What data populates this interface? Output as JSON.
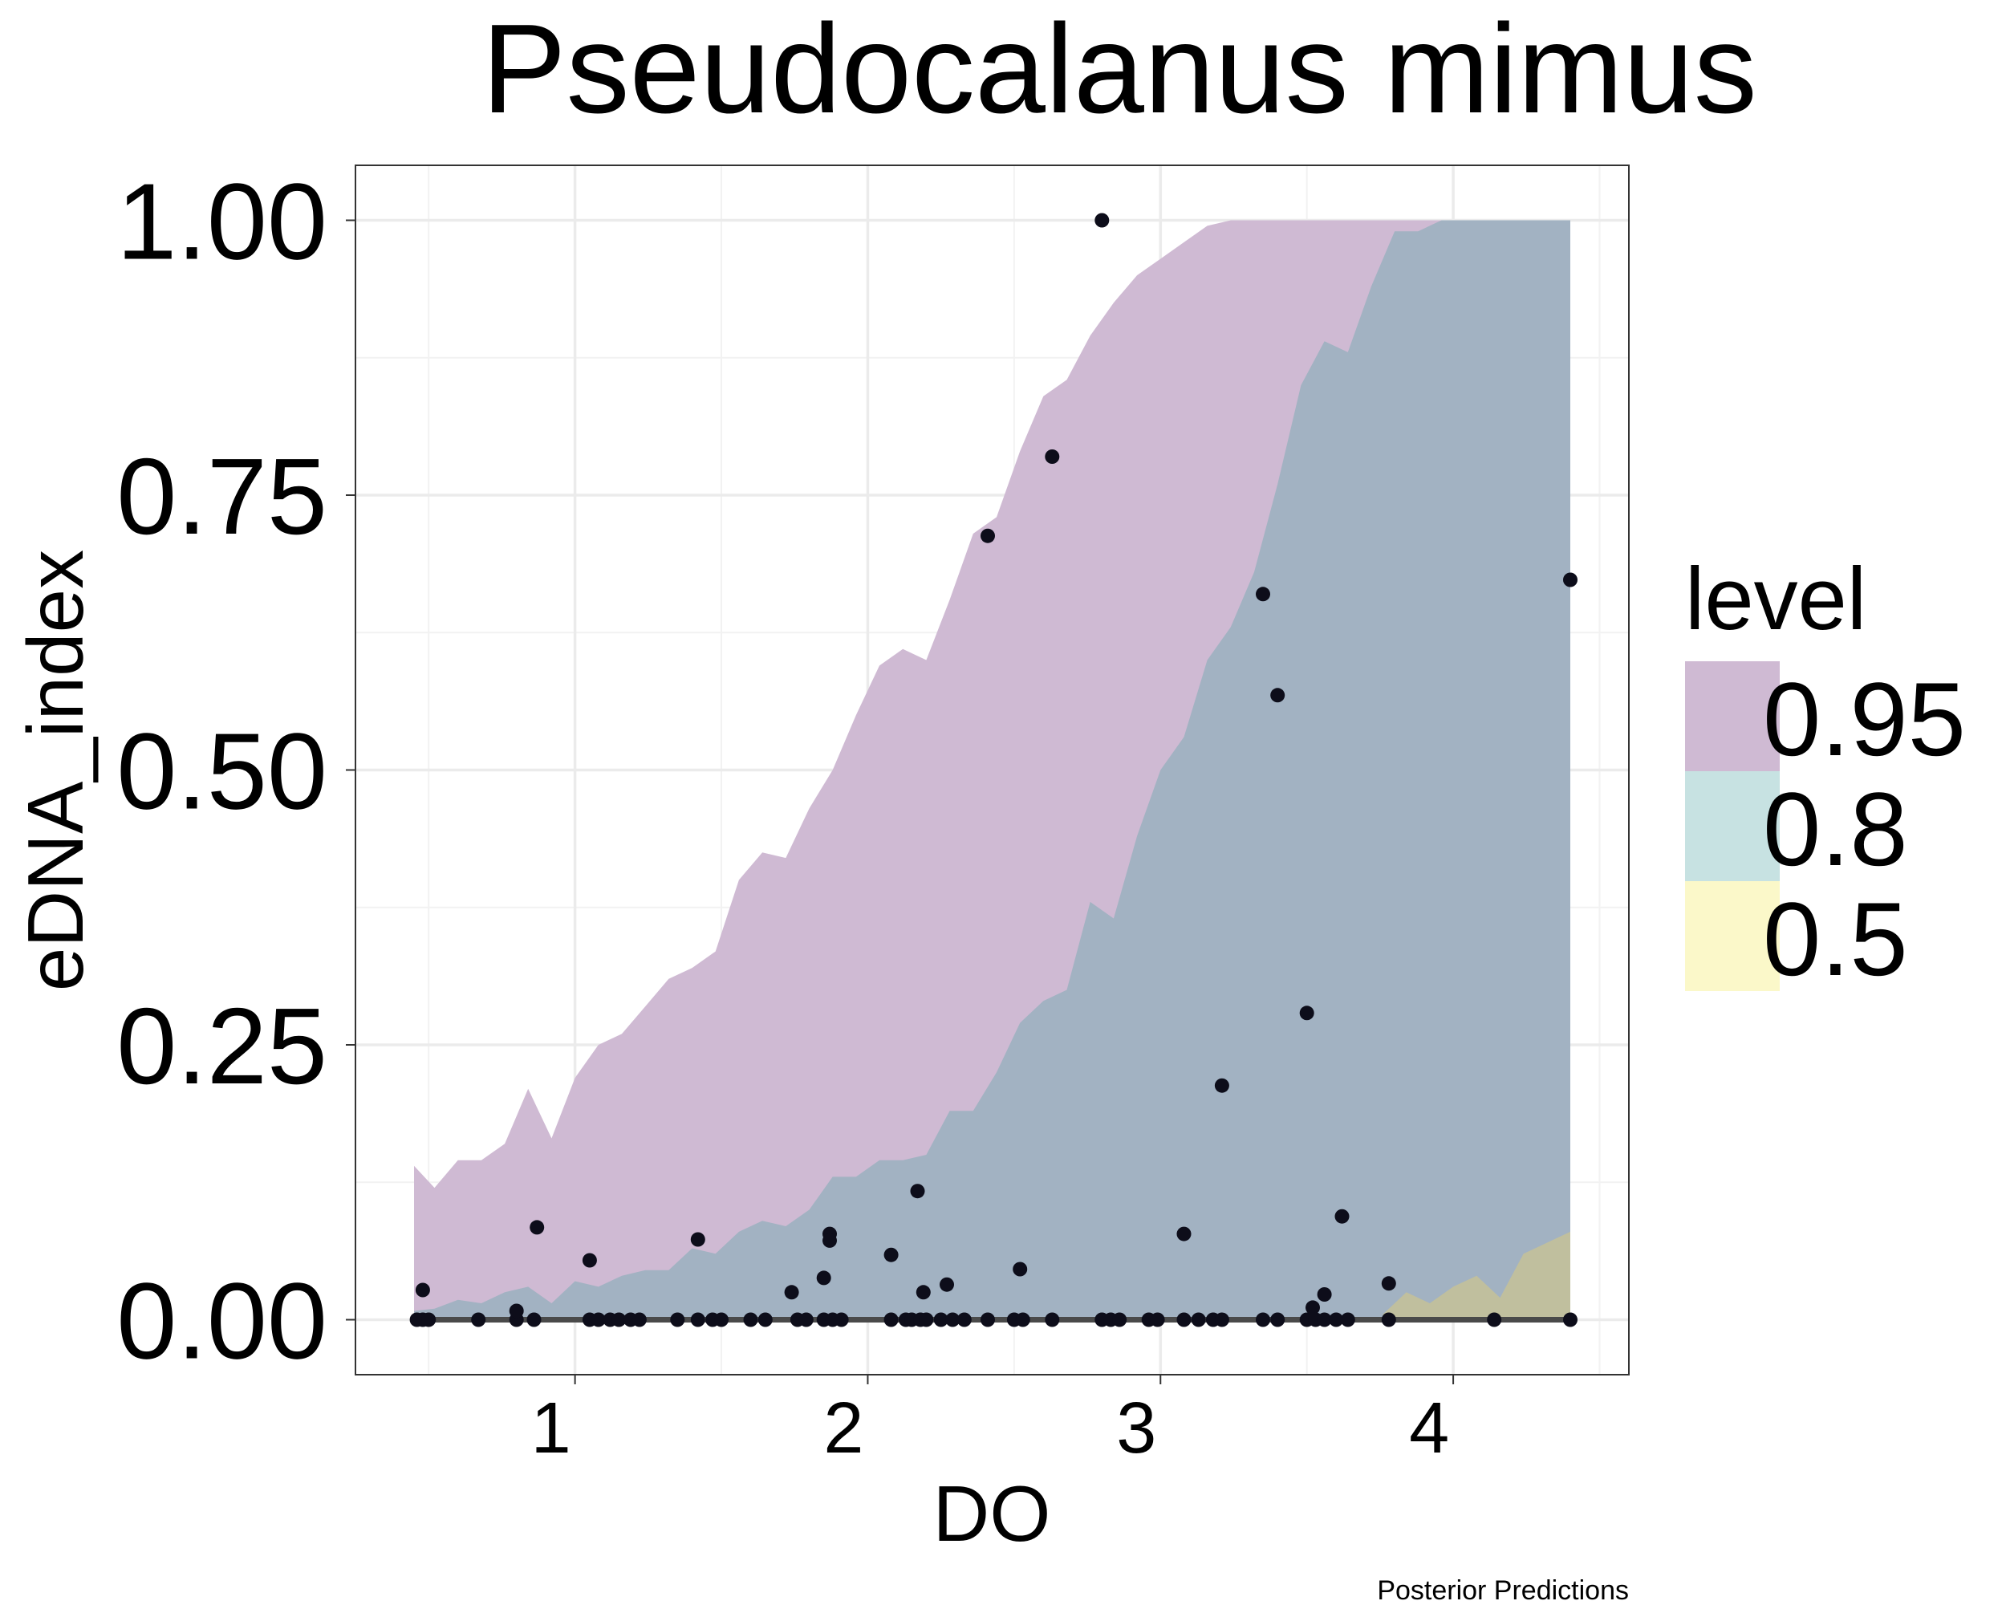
{
  "chart_data": {
    "type": "scatter",
    "title": "Pseudocalanus mimus",
    "xlabel": "DO",
    "ylabel": "eDNA_index",
    "caption": "Posterior Predictions",
    "xlim": [
      0.25,
      4.6
    ],
    "ylim": [
      -0.05,
      1.05
    ],
    "xticks": [
      1,
      2,
      3,
      4
    ],
    "xtick_labels": [
      "1",
      "2",
      "3",
      "4"
    ],
    "yticks": [
      0,
      0.25,
      0.5,
      0.75,
      1.0
    ],
    "ytick_labels": [
      "0.00",
      "0.25",
      "0.50",
      "0.75",
      "1.00"
    ],
    "grid": true,
    "legend": {
      "title": "level",
      "position": "right",
      "entries": [
        {
          "label": "0.95",
          "color": "#cfbad3"
        },
        {
          "label": "0.8",
          "color": "#c7e2e2"
        },
        {
          "label": "0.5",
          "color": "#fbf8c9"
        }
      ]
    },
    "colors": {
      "band_95": "#cfbad3",
      "band_80": "#a2b2c2",
      "band_50": "#c0bf9e",
      "median_line": "#4a4a4a",
      "points": "#0d0d1a"
    },
    "bands": {
      "x": [
        0.45,
        0.52,
        0.6,
        0.68,
        0.76,
        0.84,
        0.92,
        1.0,
        1.08,
        1.16,
        1.24,
        1.32,
        1.4,
        1.48,
        1.56,
        1.64,
        1.72,
        1.8,
        1.88,
        1.96,
        2.04,
        2.12,
        2.2,
        2.28,
        2.36,
        2.44,
        2.52,
        2.6,
        2.68,
        2.76,
        2.84,
        2.92,
        3.0,
        3.08,
        3.16,
        3.24,
        3.32,
        3.4,
        3.48,
        3.56,
        3.64,
        3.72,
        3.8,
        3.88,
        3.96,
        4.04,
        4.12,
        4.2,
        4.28,
        4.36,
        4.4
      ],
      "band_95": {
        "lower": [
          0,
          0,
          0,
          0,
          0,
          0,
          0,
          0,
          0,
          0,
          0,
          0,
          0,
          0,
          0,
          0,
          0,
          0,
          0,
          0,
          0,
          0,
          0,
          0,
          0,
          0,
          0,
          0,
          0,
          0,
          0,
          0,
          0,
          0,
          0,
          0,
          0,
          0,
          0,
          0,
          0,
          0,
          0,
          0,
          0,
          0,
          0,
          0,
          0,
          0,
          0
        ],
        "upper": [
          0.14,
          0.12,
          0.145,
          0.145,
          0.16,
          0.21,
          0.165,
          0.22,
          0.25,
          0.26,
          0.285,
          0.31,
          0.32,
          0.335,
          0.4,
          0.425,
          0.42,
          0.465,
          0.5,
          0.55,
          0.595,
          0.61,
          0.6,
          0.655,
          0.715,
          0.73,
          0.79,
          0.84,
          0.855,
          0.895,
          0.925,
          0.95,
          0.965,
          0.98,
          0.995,
          1.0,
          1.0,
          1.0,
          1.0,
          1.0,
          1.0,
          1.0,
          1.0,
          1.0,
          1.0,
          1.0,
          1.0,
          1.0,
          1.0,
          1.0,
          1.0
        ]
      },
      "band_80": {
        "lower": [
          0,
          0,
          0,
          0,
          0,
          0,
          0,
          0,
          0,
          0,
          0,
          0,
          0,
          0,
          0,
          0,
          0,
          0,
          0,
          0,
          0,
          0,
          0,
          0,
          0,
          0,
          0,
          0,
          0,
          0,
          0,
          0,
          0,
          0,
          0,
          0,
          0,
          0,
          0,
          0,
          0,
          0,
          0,
          0,
          0,
          0,
          0,
          0,
          0,
          0,
          0
        ],
        "upper": [
          0.008,
          0.01,
          0.018,
          0.015,
          0.025,
          0.03,
          0.015,
          0.035,
          0.03,
          0.04,
          0.045,
          0.045,
          0.065,
          0.06,
          0.08,
          0.09,
          0.085,
          0.1,
          0.13,
          0.13,
          0.145,
          0.145,
          0.15,
          0.19,
          0.19,
          0.225,
          0.27,
          0.29,
          0.3,
          0.38,
          0.365,
          0.44,
          0.5,
          0.53,
          0.6,
          0.63,
          0.68,
          0.76,
          0.85,
          0.89,
          0.88,
          0.94,
          0.99,
          0.99,
          1.0,
          1.0,
          1.0,
          1.0,
          1.0,
          1.0,
          1.0
        ]
      },
      "band_50": {
        "x": [
          3.76,
          3.84,
          3.92,
          4.0,
          4.08,
          4.16,
          4.24,
          4.32,
          4.4
        ],
        "lower": [
          0,
          0,
          0,
          0,
          0,
          0,
          0,
          0,
          0
        ],
        "upper": [
          0.005,
          0.025,
          0.015,
          0.03,
          0.04,
          0.02,
          0.06,
          0.07,
          0.08
        ]
      },
      "median": {
        "x": [
          0.45,
          4.4
        ],
        "y": [
          0,
          0
        ]
      }
    },
    "points": [
      [
        0.48,
        0.027
      ],
      [
        0.46,
        0
      ],
      [
        0.48,
        0
      ],
      [
        0.5,
        0
      ],
      [
        0.67,
        0
      ],
      [
        0.8,
        0
      ],
      [
        0.8,
        0.008
      ],
      [
        0.86,
        0
      ],
      [
        0.87,
        0.084
      ],
      [
        1.05,
        0.054
      ],
      [
        1.05,
        0
      ],
      [
        1.08,
        0
      ],
      [
        1.12,
        0
      ],
      [
        1.15,
        0
      ],
      [
        1.19,
        0
      ],
      [
        1.22,
        0
      ],
      [
        1.35,
        0
      ],
      [
        1.42,
        0.073
      ],
      [
        1.42,
        0
      ],
      [
        1.47,
        0
      ],
      [
        1.5,
        0
      ],
      [
        1.6,
        0
      ],
      [
        1.65,
        0
      ],
      [
        1.74,
        0.025
      ],
      [
        1.76,
        0
      ],
      [
        1.79,
        0
      ],
      [
        1.85,
        0.038
      ],
      [
        1.87,
        0.078
      ],
      [
        1.87,
        0.072
      ],
      [
        1.85,
        0
      ],
      [
        1.88,
        0
      ],
      [
        1.91,
        0
      ],
      [
        2.08,
        0.059
      ],
      [
        2.08,
        0
      ],
      [
        2.13,
        0
      ],
      [
        2.15,
        0
      ],
      [
        2.17,
        0.117
      ],
      [
        2.19,
        0.025
      ],
      [
        2.18,
        0
      ],
      [
        2.2,
        0
      ],
      [
        2.25,
        0
      ],
      [
        2.27,
        0.032
      ],
      [
        2.29,
        0
      ],
      [
        2.33,
        0
      ],
      [
        2.41,
        0.713
      ],
      [
        2.41,
        0
      ],
      [
        2.5,
        0
      ],
      [
        2.52,
        0.046
      ],
      [
        2.53,
        0
      ],
      [
        2.63,
        0.785
      ],
      [
        2.63,
        0
      ],
      [
        2.8,
        1.0
      ],
      [
        2.8,
        0
      ],
      [
        2.83,
        0
      ],
      [
        2.86,
        0
      ],
      [
        2.96,
        0
      ],
      [
        2.99,
        0
      ],
      [
        3.08,
        0.078
      ],
      [
        3.08,
        0
      ],
      [
        3.13,
        0
      ],
      [
        3.18,
        0
      ],
      [
        3.21,
        0.213
      ],
      [
        3.21,
        0
      ],
      [
        3.35,
        0.66
      ],
      [
        3.35,
        0
      ],
      [
        3.4,
        0.568
      ],
      [
        3.4,
        0
      ],
      [
        3.5,
        0.279
      ],
      [
        3.5,
        0
      ],
      [
        3.52,
        0.011
      ],
      [
        3.53,
        0
      ],
      [
        3.56,
        0.023
      ],
      [
        3.56,
        0
      ],
      [
        3.6,
        0
      ],
      [
        3.62,
        0.094
      ],
      [
        3.64,
        0
      ],
      [
        3.78,
        0.033
      ],
      [
        3.78,
        0
      ],
      [
        4.14,
        0
      ],
      [
        4.4,
        0.673
      ],
      [
        4.4,
        0
      ]
    ]
  }
}
